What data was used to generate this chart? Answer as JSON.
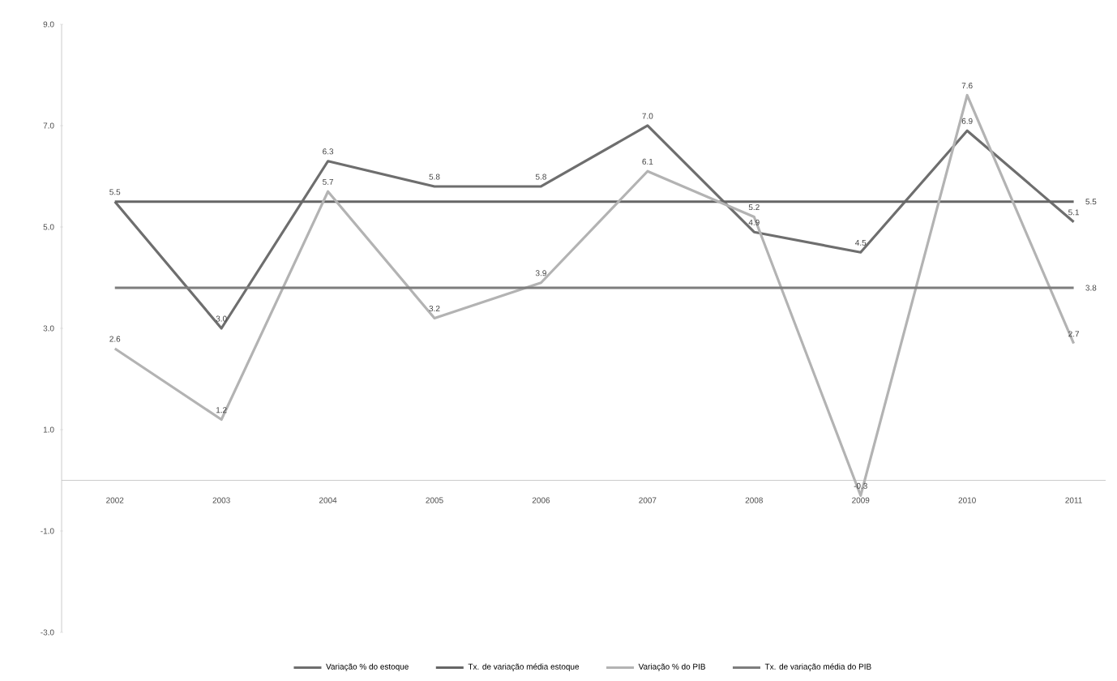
{
  "chart_data": {
    "type": "line",
    "categories": [
      "2002",
      "2003",
      "2004",
      "2005",
      "2006",
      "2007",
      "2008",
      "2009",
      "2010",
      "2011"
    ],
    "series": [
      {
        "name": "Variação % do estoque",
        "color": "#6e6e6e",
        "values": [
          5.5,
          3.0,
          6.3,
          5.8,
          5.8,
          7.0,
          4.9,
          4.5,
          6.9,
          5.1
        ],
        "value_labels": [
          "5.5",
          "3.0",
          "6.3",
          "5.8",
          "5.8",
          "7.0",
          "4.9",
          "4.5",
          "6.9",
          "5.1"
        ]
      },
      {
        "name": "Tx. de variação média estoque",
        "color": "#666666",
        "values": [
          5.5,
          5.5,
          5.5,
          5.5,
          5.5,
          5.5,
          5.5,
          5.5,
          5.5,
          5.5
        ],
        "value_labels": [
          null,
          null,
          null,
          null,
          null,
          null,
          null,
          null,
          null,
          "5.5"
        ]
      },
      {
        "name": "Variação % do PIB",
        "color": "#b3b3b3",
        "values": [
          2.6,
          1.2,
          5.7,
          3.2,
          3.9,
          6.1,
          5.2,
          -0.3,
          7.6,
          2.7
        ],
        "value_labels": [
          "2.6",
          "1.2",
          "5.7",
          "3.2",
          "3.9",
          "6.1",
          "5.2",
          "-0.3",
          "7.6",
          "2.7"
        ]
      },
      {
        "name": "Tx. de variação média do PIB",
        "color": "#7d7d7d",
        "values": [
          3.8,
          3.8,
          3.8,
          3.8,
          3.8,
          3.8,
          3.8,
          3.8,
          3.8,
          3.8
        ],
        "value_labels": [
          null,
          null,
          null,
          null,
          null,
          null,
          null,
          null,
          null,
          "3.8"
        ]
      }
    ],
    "ylim": [
      -3,
      9
    ],
    "yticks": [
      {
        "value": -3,
        "label": "-3.0"
      },
      {
        "value": -1,
        "label": "-1.0"
      },
      {
        "value": 1,
        "label": "1.0"
      },
      {
        "value": 3,
        "label": "3.0"
      },
      {
        "value": 5,
        "label": "5.0"
      },
      {
        "value": 7,
        "label": "7.0"
      },
      {
        "value": 9,
        "label": "9.0"
      }
    ],
    "legend": "bottom",
    "marker": "none",
    "line_style": "solid"
  }
}
